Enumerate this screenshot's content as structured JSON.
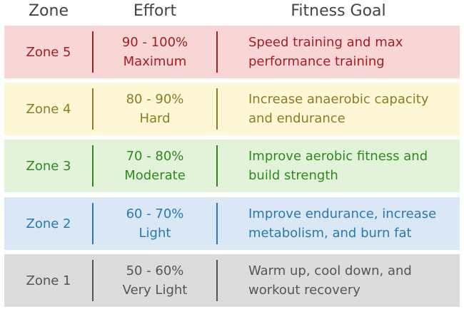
{
  "headers": {
    "zone": "Zone",
    "effort": "Effort",
    "goal": "Fitness Goal"
  },
  "rows": [
    {
      "zone": "Zone 5",
      "percent": "90 - 100%",
      "effort": "Maximum",
      "goal1": "Speed training and max",
      "goal2": "performance training",
      "bg": "#f9d6d6",
      "color": "#a31e22"
    },
    {
      "zone": "Zone 4",
      "percent": "80 - 90%",
      "effort": "Hard",
      "goal1": "Increase anaerobic capacity",
      "goal2": "and endurance",
      "bg": "#fdf7d5",
      "color": "#8c7c22"
    },
    {
      "zone": "Zone 3",
      "percent": "70 - 80%",
      "effort": "Moderate",
      "goal1": "Improve aerobic fitness and",
      "goal2": "build strength",
      "bg": "#e2f3da",
      "color": "#2f8a1c"
    },
    {
      "zone": "Zone 2",
      "percent": "60 - 70%",
      "effort": "Light",
      "goal1": "Improve endurance, increase",
      "goal2": "metabolism, and burn fat",
      "bg": "#d9e8f4",
      "color": "#2a78b2"
    },
    {
      "zone": "Zone 1",
      "percent": "50 - 60%",
      "effort": "Very Light",
      "goal1": "Warm up, cool down, and",
      "goal2": "workout recovery",
      "bg": "#dcdcdc",
      "color": "#555555"
    }
  ]
}
